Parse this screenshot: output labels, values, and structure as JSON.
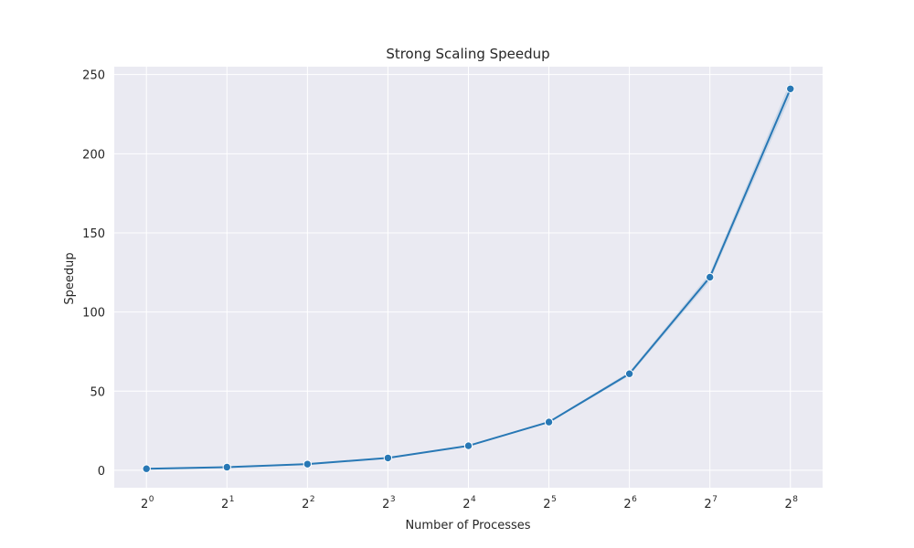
{
  "chart_data": {
    "type": "line",
    "title": "Strong Scaling Speedup",
    "xlabel": "Number of Processes",
    "ylabel": "Speedup",
    "x_scale": "log2",
    "x": [
      1,
      2,
      4,
      8,
      16,
      32,
      64,
      128,
      256
    ],
    "x_tick_labels": [
      {
        "base": "2",
        "exp": "0"
      },
      {
        "base": "2",
        "exp": "1"
      },
      {
        "base": "2",
        "exp": "2"
      },
      {
        "base": "2",
        "exp": "3"
      },
      {
        "base": "2",
        "exp": "4"
      },
      {
        "base": "2",
        "exp": "5"
      },
      {
        "base": "2",
        "exp": "6"
      },
      {
        "base": "2",
        "exp": "7"
      },
      {
        "base": "2",
        "exp": "8"
      }
    ],
    "y_ticks": [
      "0",
      "50",
      "100",
      "150",
      "200",
      "250"
    ],
    "ylim": [
      -11,
      255
    ],
    "grid": true,
    "series": [
      {
        "values": [
          1.0,
          2.0,
          3.9,
          7.8,
          15.5,
          30.5,
          61.0,
          122.0,
          241.0
        ],
        "color": "#2878b5",
        "marker": "circle"
      }
    ],
    "background_color": "#eaeaf2",
    "grid_color": "#ffffff"
  }
}
